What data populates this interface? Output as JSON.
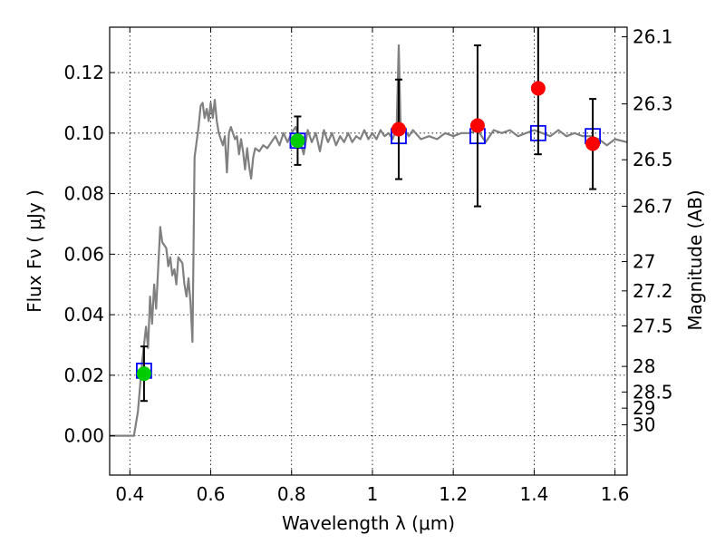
{
  "chart_data": {
    "type": "scatter",
    "xlabel": "Wavelength  λ (μm)",
    "ylabel": "Flux  Fν ( μJy )",
    "y2label": "Magnitude (AB)",
    "xlim": [
      0.35,
      1.63
    ],
    "ylim": [
      -0.013,
      0.135
    ],
    "grid": true,
    "x_ticks": [
      0.4,
      0.6,
      0.8,
      1.0,
      1.2,
      1.4,
      1.6
    ],
    "x_tick_labels": [
      "0.4",
      "0.6",
      "0.8",
      "1",
      "1.2",
      "1.4",
      "1.6"
    ],
    "y_ticks": [
      0.0,
      0.02,
      0.04,
      0.06,
      0.08,
      0.1,
      0.12
    ],
    "y_tick_labels": [
      "0.00",
      "0.02",
      "0.04",
      "0.06",
      "0.08",
      "0.10",
      "0.12"
    ],
    "y2_ticks": [
      {
        "label": "26.1",
        "mag": 26.1
      },
      {
        "label": "26.3",
        "mag": 26.3
      },
      {
        "label": "26.5",
        "mag": 26.5
      },
      {
        "label": "26.7",
        "mag": 26.7
      },
      {
        "label": "27",
        "mag": 27.0
      },
      {
        "label": "27.2",
        "mag": 27.2
      },
      {
        "label": "27.5",
        "mag": 27.5
      },
      {
        "label": "28",
        "mag": 28.0
      },
      {
        "label": "28.5",
        "mag": 28.5
      },
      {
        "label": "29",
        "mag": 29.0
      },
      {
        "label": "30",
        "mag": 30.0
      }
    ],
    "series": [
      {
        "kind": "line",
        "color": "#808080",
        "points": [
          [
            0.35,
            0.0
          ],
          [
            0.41,
            0.0
          ],
          [
            0.42,
            0.008
          ],
          [
            0.43,
            0.024
          ],
          [
            0.44,
            0.036
          ],
          [
            0.445,
            0.029
          ],
          [
            0.45,
            0.046
          ],
          [
            0.455,
            0.037
          ],
          [
            0.46,
            0.05
          ],
          [
            0.465,
            0.042
          ],
          [
            0.475,
            0.069
          ],
          [
            0.48,
            0.064
          ],
          [
            0.49,
            0.062
          ],
          [
            0.495,
            0.056
          ],
          [
            0.5,
            0.059
          ],
          [
            0.505,
            0.053
          ],
          [
            0.51,
            0.055
          ],
          [
            0.515,
            0.05
          ],
          [
            0.52,
            0.059
          ],
          [
            0.53,
            0.057
          ],
          [
            0.535,
            0.05
          ],
          [
            0.54,
            0.046
          ],
          [
            0.545,
            0.052
          ],
          [
            0.55,
            0.044
          ],
          [
            0.555,
            0.031
          ],
          [
            0.56,
            0.092
          ],
          [
            0.57,
            0.102
          ],
          [
            0.575,
            0.109
          ],
          [
            0.58,
            0.11
          ],
          [
            0.585,
            0.105
          ],
          [
            0.59,
            0.108
          ],
          [
            0.595,
            0.104
          ],
          [
            0.6,
            0.11
          ],
          [
            0.605,
            0.105
          ],
          [
            0.61,
            0.111
          ],
          [
            0.615,
            0.104
          ],
          [
            0.62,
            0.1
          ],
          [
            0.63,
            0.096
          ],
          [
            0.635,
            0.099
          ],
          [
            0.64,
            0.087
          ],
          [
            0.645,
            0.1
          ],
          [
            0.65,
            0.102
          ],
          [
            0.66,
            0.098
          ],
          [
            0.665,
            0.099
          ],
          [
            0.67,
            0.093
          ],
          [
            0.675,
            0.098
          ],
          [
            0.68,
            0.094
          ],
          [
            0.685,
            0.088
          ],
          [
            0.69,
            0.095
          ],
          [
            0.695,
            0.089
          ],
          [
            0.7,
            0.085
          ],
          [
            0.705,
            0.092
          ],
          [
            0.71,
            0.095
          ],
          [
            0.72,
            0.094
          ],
          [
            0.73,
            0.096
          ],
          [
            0.74,
            0.095
          ],
          [
            0.75,
            0.097
          ],
          [
            0.76,
            0.099
          ],
          [
            0.77,
            0.096
          ],
          [
            0.78,
            0.1
          ],
          [
            0.79,
            0.097
          ],
          [
            0.8,
            0.1
          ],
          [
            0.81,
            0.102
          ],
          [
            0.82,
            0.098
          ],
          [
            0.83,
            0.093
          ],
          [
            0.84,
            0.101
          ],
          [
            0.85,
            0.097
          ],
          [
            0.86,
            0.1
          ],
          [
            0.87,
            0.094
          ],
          [
            0.88,
            0.101
          ],
          [
            0.89,
            0.097
          ],
          [
            0.9,
            0.1
          ],
          [
            0.91,
            0.096
          ],
          [
            0.92,
            0.099
          ],
          [
            0.93,
            0.097
          ],
          [
            0.94,
            0.1
          ],
          [
            0.95,
            0.097
          ],
          [
            0.96,
            0.099
          ],
          [
            0.97,
            0.098
          ],
          [
            0.98,
            0.101
          ],
          [
            0.99,
            0.098
          ],
          [
            1.0,
            0.1
          ],
          [
            1.01,
            0.098
          ],
          [
            1.02,
            0.101
          ],
          [
            1.03,
            0.099
          ],
          [
            1.04,
            0.1
          ],
          [
            1.05,
            0.098
          ],
          [
            1.06,
            0.102
          ],
          [
            1.065,
            0.129
          ],
          [
            1.07,
            0.1
          ],
          [
            1.08,
            0.101
          ],
          [
            1.09,
            0.099
          ],
          [
            1.1,
            0.101
          ],
          [
            1.12,
            0.098
          ],
          [
            1.14,
            0.099
          ],
          [
            1.16,
            0.098
          ],
          [
            1.18,
            0.1
          ],
          [
            1.2,
            0.099
          ],
          [
            1.22,
            0.1
          ],
          [
            1.24,
            0.1
          ],
          [
            1.26,
            0.101
          ],
          [
            1.28,
            0.097
          ],
          [
            1.3,
            0.101
          ],
          [
            1.32,
            0.1
          ],
          [
            1.34,
            0.101
          ],
          [
            1.36,
            0.099
          ],
          [
            1.38,
            0.1
          ],
          [
            1.4,
            0.101
          ],
          [
            1.42,
            0.1
          ],
          [
            1.44,
            0.099
          ],
          [
            1.46,
            0.101
          ],
          [
            1.48,
            0.099
          ],
          [
            1.5,
            0.1
          ],
          [
            1.52,
            0.099
          ],
          [
            1.54,
            0.099
          ],
          [
            1.56,
            0.098
          ],
          [
            1.58,
            0.096
          ],
          [
            1.6,
            0.098
          ],
          [
            1.63,
            0.097
          ]
        ]
      },
      {
        "kind": "open-squares",
        "color": "#0000ff",
        "points": [
          [
            0.435,
            0.0215
          ],
          [
            0.815,
            0.0975
          ],
          [
            1.065,
            0.099
          ],
          [
            1.26,
            0.099
          ],
          [
            1.41,
            0.1
          ],
          [
            1.545,
            0.099
          ]
        ]
      },
      {
        "kind": "points-with-errors",
        "color": "#00cc00",
        "points": [
          {
            "x": 0.435,
            "y": 0.0205,
            "lo": 0.0115,
            "hi": 0.0295
          },
          {
            "x": 0.815,
            "y": 0.0975,
            "lo": 0.0895,
            "hi": 0.1055
          }
        ]
      },
      {
        "kind": "points-with-errors",
        "color": "#ff0000",
        "points": [
          {
            "x": 1.065,
            "y": 0.1013,
            "lo": 0.0848,
            "hi": 0.1177
          },
          {
            "x": 1.26,
            "y": 0.1025,
            "lo": 0.0758,
            "hi": 0.129
          },
          {
            "x": 1.41,
            "y": 0.1148,
            "lo": 0.093,
            "hi": 0.136
          },
          {
            "x": 1.545,
            "y": 0.0965,
            "lo": 0.0815,
            "hi": 0.1113
          }
        ]
      }
    ]
  }
}
